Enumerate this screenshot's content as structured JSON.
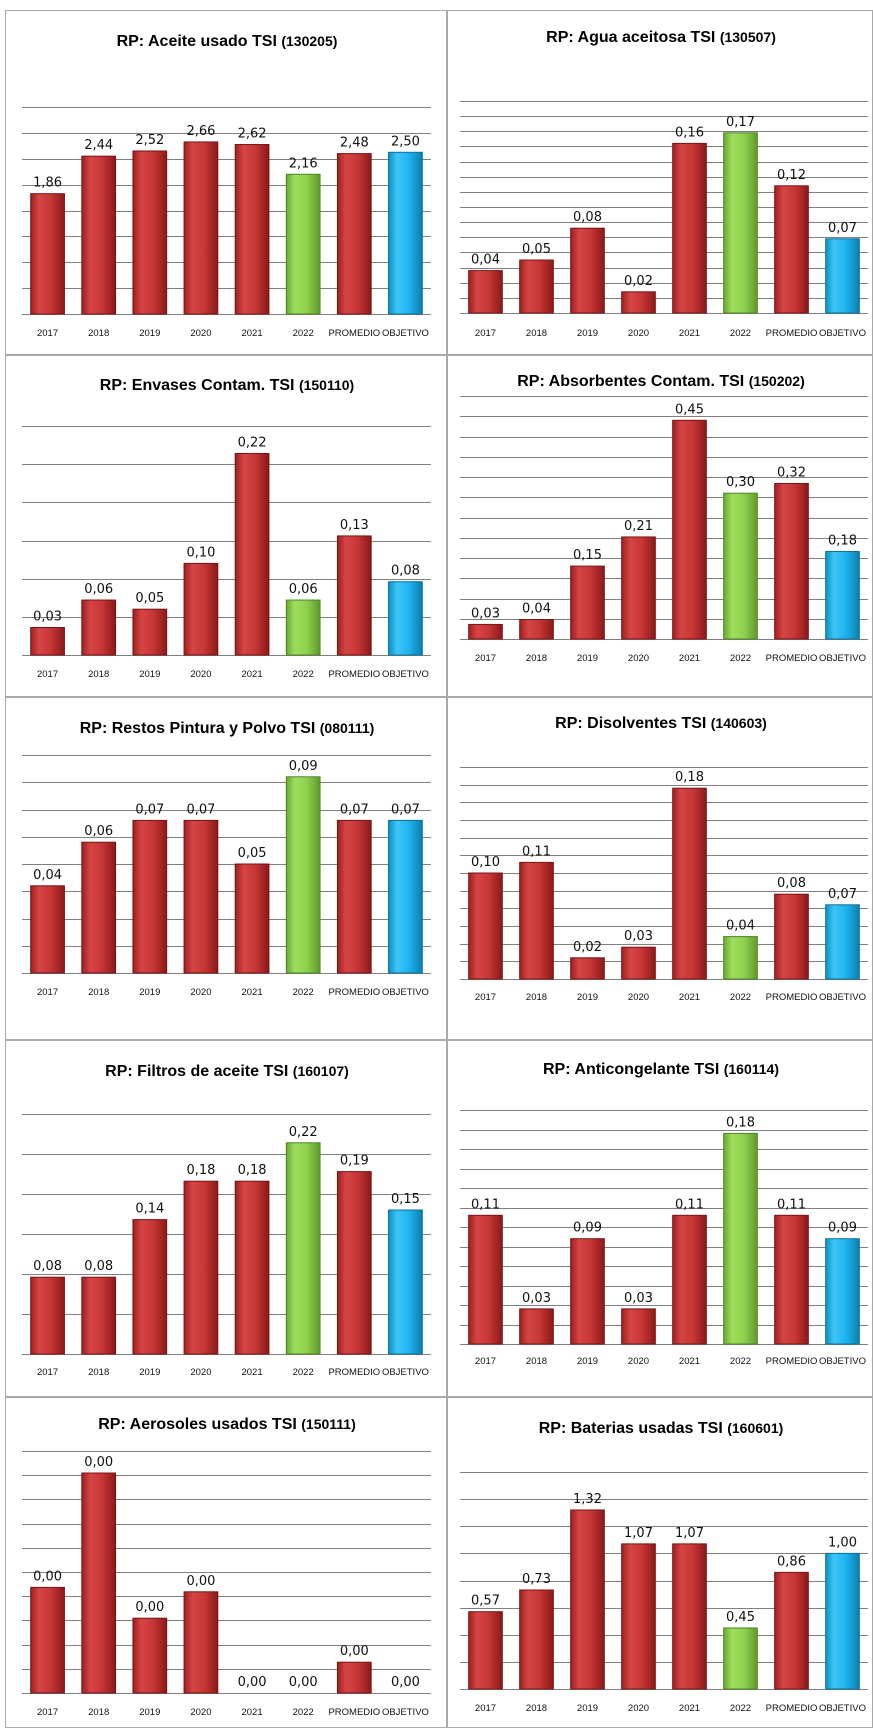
{
  "colors": {
    "bar": "#d23b3b",
    "current_year": "#8fd14f",
    "objective": "#1fb3ee",
    "grid": "#7f7f7f"
  },
  "chart_data": [
    {
      "type": "bar",
      "title": "RP: Aceite usado TSI",
      "code": "(130205)",
      "categories": [
        "2017",
        "2018",
        "2019",
        "2020",
        "2021",
        "2022",
        "PROMEDIO",
        "OBJETIVO"
      ],
      "values": [
        1.86,
        2.44,
        2.52,
        2.66,
        2.62,
        2.16,
        2.48,
        2.5
      ],
      "labels": [
        "1,86",
        "2,44",
        "2,52",
        "2,66",
        "2,62",
        "2,16",
        "2,48",
        "2,50"
      ],
      "grid": true,
      "legend": "none"
    },
    {
      "type": "bar",
      "title": "RP: Agua aceitosa TSI",
      "code": "(130507)",
      "categories": [
        "2017",
        "2018",
        "2019",
        "2020",
        "2021",
        "2022",
        "PROMEDIO",
        "OBJETIVO"
      ],
      "values": [
        0.04,
        0.05,
        0.08,
        0.02,
        0.16,
        0.17,
        0.12,
        0.07
      ],
      "labels": [
        "0,04",
        "0,05",
        "0,08",
        "0,02",
        "0,16",
        "0,17",
        "0,12",
        "0,07"
      ],
      "grid": true,
      "legend": "none"
    },
    {
      "type": "bar",
      "title": "RP: Envases Contam. TSI",
      "code": "(150110)",
      "categories": [
        "2017",
        "2018",
        "2019",
        "2020",
        "2021",
        "2022",
        "PROMEDIO",
        "OBJETIVO"
      ],
      "values": [
        0.03,
        0.06,
        0.05,
        0.1,
        0.22,
        0.06,
        0.13,
        0.08
      ],
      "labels": [
        "0,03",
        "0,06",
        "0,05",
        "0,10",
        "0,22",
        "0,06",
        "0,13",
        "0,08"
      ],
      "grid": true,
      "legend": "none"
    },
    {
      "type": "bar",
      "title": "RP: Absorbentes Contam. TSI",
      "code": "(150202)",
      "categories": [
        "2017",
        "2018",
        "2019",
        "2020",
        "2021",
        "2022",
        "PROMEDIO",
        "OBJETIVO"
      ],
      "values": [
        0.03,
        0.04,
        0.15,
        0.21,
        0.45,
        0.3,
        0.32,
        0.18
      ],
      "labels": [
        "0,03",
        "0,04",
        "0,15",
        "0,21",
        "0,45",
        "0,30",
        "0,32",
        "0,18"
      ],
      "grid": true,
      "legend": "none"
    },
    {
      "type": "bar",
      "title": "RP: Restos Pintura y Polvo TSI",
      "code": "(080111)",
      "categories": [
        "2017",
        "2018",
        "2019",
        "2020",
        "2021",
        "2022",
        "PROMEDIO",
        "OBJETIVO"
      ],
      "values": [
        0.04,
        0.06,
        0.07,
        0.07,
        0.05,
        0.09,
        0.07,
        0.07
      ],
      "labels": [
        "0,04",
        "0,06",
        "0,07",
        "0,07",
        "0,05",
        "0,09",
        "0,07",
        "0,07"
      ],
      "grid": true,
      "legend": "none"
    },
    {
      "type": "bar",
      "title": "RP: Disolventes TSI",
      "code": "(140603)",
      "categories": [
        "2017",
        "2018",
        "2019",
        "2020",
        "2021",
        "2022",
        "PROMEDIO",
        "OBJETIVO"
      ],
      "values": [
        0.1,
        0.11,
        0.02,
        0.03,
        0.18,
        0.04,
        0.08,
        0.07
      ],
      "labels": [
        "0,10",
        "0,11",
        "0,02",
        "0,03",
        "0,18",
        "0,04",
        "0,08",
        "0,07"
      ],
      "grid": true,
      "legend": "none"
    },
    {
      "type": "bar",
      "title": "RP: Filtros de aceite TSI",
      "code": "(160107)",
      "categories": [
        "2017",
        "2018",
        "2019",
        "2020",
        "2021",
        "2022",
        "PROMEDIO",
        "OBJETIVO"
      ],
      "values": [
        0.08,
        0.08,
        0.14,
        0.18,
        0.18,
        0.22,
        0.19,
        0.15
      ],
      "labels": [
        "0,08",
        "0,08",
        "0,14",
        "0,18",
        "0,18",
        "0,22",
        "0,19",
        "0,15"
      ],
      "grid": true,
      "legend": "none"
    },
    {
      "type": "bar",
      "title": "RP: Anticongelante TSI",
      "code": "(160114)",
      "categories": [
        "2017",
        "2018",
        "2019",
        "2020",
        "2021",
        "2022",
        "PROMEDIO",
        "OBJETIVO"
      ],
      "values": [
        0.11,
        0.03,
        0.09,
        0.03,
        0.11,
        0.18,
        0.11,
        0.09
      ],
      "labels": [
        "0,11",
        "0,03",
        "0,09",
        "0,03",
        "0,11",
        "0,18",
        "0,11",
        "0,09"
      ],
      "grid": true,
      "legend": "none"
    },
    {
      "type": "bar",
      "title": "RP: Aerosoles usados TSI",
      "code": "(150111)",
      "categories": [
        "2017",
        "2018",
        "2019",
        "2020",
        "2021",
        "2022",
        "PROMEDIO",
        "OBJETIVO"
      ],
      "values": [
        0.0024,
        0.005,
        0.0017,
        0.0023,
        0.0,
        0.0,
        0.0007,
        0.0
      ],
      "labels": [
        "0,00",
        "0,00",
        "0,00",
        "0,00",
        "0,00",
        "0,00",
        "0,00",
        "0,00"
      ],
      "grid": true,
      "legend": "none"
    },
    {
      "type": "bar",
      "title": "RP: Baterias usadas TSI",
      "code": "(160601)",
      "categories": [
        "2017",
        "2018",
        "2019",
        "2020",
        "2021",
        "2022",
        "PROMEDIO",
        "OBJETIVO"
      ],
      "values": [
        0.57,
        0.73,
        1.32,
        1.07,
        1.07,
        0.45,
        0.86,
        1.0
      ],
      "labels": [
        "0,57",
        "0,73",
        "1,32",
        "1,07",
        "1,07",
        "0,45",
        "0,86",
        "1,00"
      ],
      "grid": true,
      "legend": "none"
    }
  ]
}
